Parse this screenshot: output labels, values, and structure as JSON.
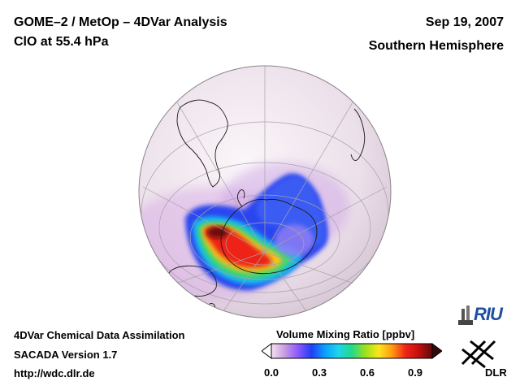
{
  "header": {
    "title": "GOME–2 / MetOp – 4DVar Analysis",
    "subtitle": "ClO at 55.4 hPa",
    "date": "Sep 19, 2007",
    "hemisphere": "Southern Hemisphere"
  },
  "footer": {
    "line1": "4DVar Chemical Data Assimilation",
    "line2": "SACADA Version 1.7",
    "line3": "http://wdc.dlr.de"
  },
  "colorbar": {
    "title": "Volume Mixing Ratio [ppbv]",
    "ticks": [
      "0.0",
      "0.3",
      "0.6",
      "0.9"
    ],
    "tick_values": [
      0.0,
      0.3,
      0.6,
      0.9
    ],
    "range": [
      0.0,
      1.0
    ],
    "colors": [
      "#f4e4f1",
      "#c79be0",
      "#8a58ff",
      "#1f3ff5",
      "#0aa0ff",
      "#1dd4ea",
      "#22d98a",
      "#9be01d",
      "#fbe61b",
      "#ff9a12",
      "#f02515",
      "#c20e0e",
      "#5e0c0c"
    ]
  },
  "logos": {
    "riu": "RIU",
    "dlr": "DLR"
  },
  "map": {
    "projection": "orthographic",
    "icons": [
      "globe-icon"
    ]
  }
}
